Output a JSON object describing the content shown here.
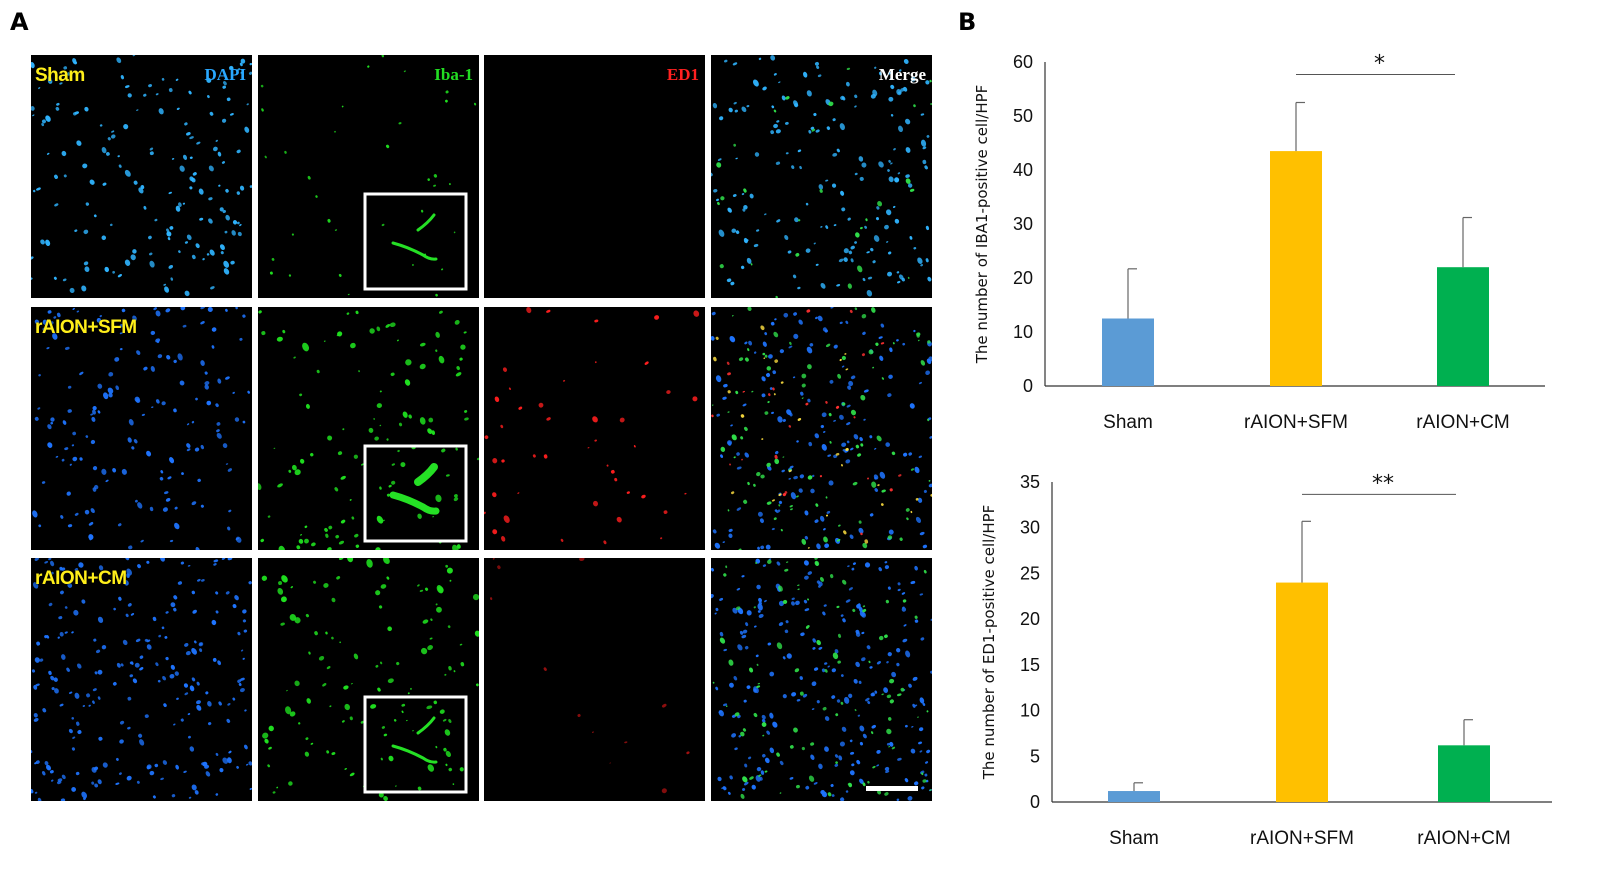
{
  "panel_a_label": "A",
  "panel_b_label": "B",
  "micrographs": {
    "rows": [
      {
        "label": "Sham"
      },
      {
        "label": "rAION+SFM"
      },
      {
        "label": "rAION+CM"
      }
    ],
    "channels": [
      {
        "label": "DAPI",
        "color": "#29a8ff"
      },
      {
        "label": "Iba-1",
        "color": "#22dd22"
      },
      {
        "label": "ED1",
        "color": "#ff2020"
      },
      {
        "label": "Merge",
        "color": "#ffffff"
      }
    ]
  },
  "chart_data": [
    {
      "type": "bar",
      "categories": [
        "Sham",
        "rAION+SFM",
        "rAION+CM"
      ],
      "values": [
        12.5,
        43.5,
        22
      ],
      "errors": [
        9.2,
        9,
        9.2
      ],
      "colors": [
        "#5b9bd5",
        "#ffc000",
        "#00b050"
      ],
      "title": "",
      "xlabel": "",
      "ylabel": "The number of IBA1-positive cell/HPF",
      "ylim": [
        0,
        60
      ],
      "yticks": [
        0,
        10,
        20,
        30,
        40,
        50,
        60
      ],
      "significance": {
        "from": "rAION+SFM",
        "to": "rAION+CM",
        "label": "*"
      },
      "grid": false,
      "legend": "none"
    },
    {
      "type": "bar",
      "categories": [
        "Sham",
        "rAION+SFM",
        "rAION+CM"
      ],
      "values": [
        1.2,
        24,
        6.2
      ],
      "errors": [
        0.9,
        6.7,
        2.8
      ],
      "colors": [
        "#5b9bd5",
        "#ffc000",
        "#00b050"
      ],
      "title": "",
      "xlabel": "",
      "ylabel": "The number of ED1-positive cell/HPF",
      "ylim": [
        0,
        35
      ],
      "yticks": [
        0,
        5,
        10,
        15,
        20,
        25,
        30,
        35
      ],
      "significance": {
        "from": "rAION+SFM",
        "to": "rAION+CM",
        "label": "**"
      },
      "grid": false,
      "legend": "none"
    }
  ]
}
